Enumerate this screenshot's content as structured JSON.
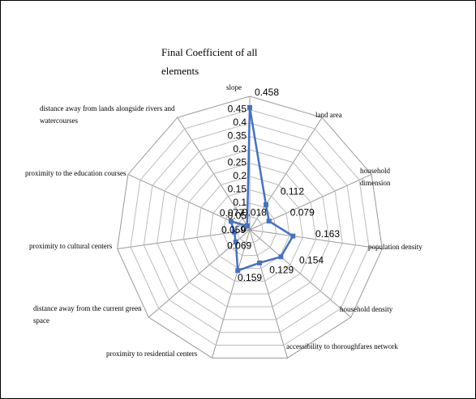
{
  "chart_data": {
    "type": "radar",
    "title": "Final Coefficient of all elements",
    "categories": [
      "slope",
      "land area",
      "household dimension",
      "population density",
      "household density",
      "accessibility to thoroughfares network",
      "proximity to residential centers",
      "distance away from the current green space",
      "proximity to cultural centers",
      "proximity to the education courses",
      "distance away from lands alongside rivers and watercourses"
    ],
    "values": [
      0.458,
      0.112,
      0.079,
      0.163,
      0.154,
      0.129,
      0.159,
      0.069,
      0.059,
      0.077,
      0.018
    ],
    "color": "#4472c4",
    "ylim": [
      0,
      0.5
    ],
    "yticks": [
      0,
      0.05,
      0.1,
      0.15,
      0.2,
      0.25,
      0.3,
      0.35,
      0.4,
      0.45
    ],
    "grid": true
  }
}
